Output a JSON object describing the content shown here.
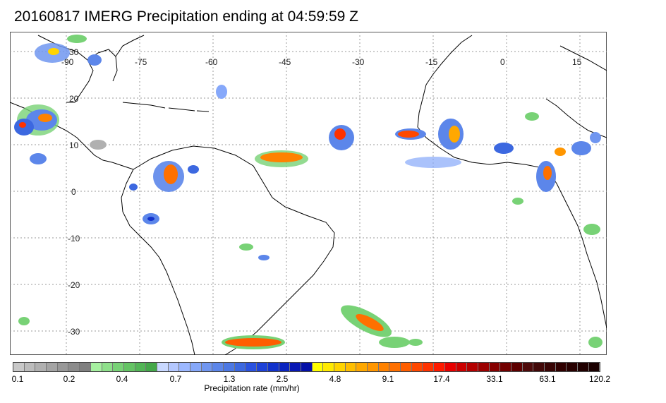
{
  "title": "20160817 IMERG Precipitation ending at 04:59:59 Z",
  "map": {
    "lon_labels": [
      "-90",
      "-75",
      "-60",
      "-45",
      "-30",
      "-15",
      "0",
      "15"
    ],
    "lat_labels": [
      "30",
      "20",
      "10",
      "0",
      "-10",
      "-20",
      "-30"
    ],
    "gridlines": true,
    "region": "Tropical Atlantic, South America and West Africa"
  },
  "colorbar": {
    "title": "Precipitation rate (mm/hr)",
    "tick_labels": [
      "0.1",
      "0.2",
      "0.4",
      "0.7",
      "1.3",
      "2.5",
      "4.8",
      "9.1",
      "17.4",
      "33.1",
      "63.1",
      "120.2"
    ],
    "colors": [
      "#c8c8c8",
      "#bcbcbc",
      "#b0b0b0",
      "#a4a4a4",
      "#989898",
      "#8c8c8c",
      "#808080",
      "#a6f0a0",
      "#8ee08a",
      "#78d276",
      "#64c464",
      "#52b656",
      "#44a84a",
      "#c8d8ff",
      "#b4c8ff",
      "#9cb8ff",
      "#86a8fa",
      "#7096f0",
      "#5c86ea",
      "#4c78e4",
      "#3c68e0",
      "#2a52e0",
      "#1e42d8",
      "#1232cc",
      "#0a24c0",
      "#0818b4",
      "#0410a8",
      "#ffff00",
      "#ffea00",
      "#ffd400",
      "#ffbe00",
      "#ffa800",
      "#ff9600",
      "#ff8200",
      "#ff7000",
      "#ff5e00",
      "#ff4800",
      "#ff3200",
      "#ff1a00",
      "#e80000",
      "#cc0000",
      "#b40000",
      "#9c0000",
      "#860000",
      "#720000",
      "#5e0000",
      "#4e0a0a",
      "#420808",
      "#380404",
      "#300000",
      "#280000",
      "#200000",
      "#1a0000"
    ]
  }
}
